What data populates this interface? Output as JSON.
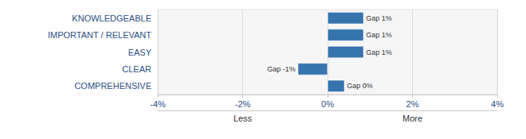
{
  "chart_data": {
    "type": "bar",
    "orientation": "horizontal",
    "categories": [
      "KNOWLEDGEABLE",
      "IMPORTANT / RELEVANT",
      "EASY",
      "CLEAR",
      "COMPREHENSIVE"
    ],
    "values": [
      0.85,
      0.85,
      0.85,
      -0.7,
      0.4
    ],
    "value_labels": [
      "Gap 1%",
      "Gap 1%",
      "Gap 1%",
      "Gap -1%",
      "Gap 0%"
    ],
    "data_labels": true,
    "color": "#3674ad",
    "xlim": [
      -4,
      4
    ],
    "xticks": [
      {
        "value": -4,
        "label": "-4%"
      },
      {
        "value": -2,
        "label": "-2%"
      },
      {
        "value": 0,
        "label": "0%"
      },
      {
        "value": 2,
        "label": "2%"
      },
      {
        "value": 4,
        "label": "4%"
      }
    ],
    "annotations": [
      {
        "text": "Less",
        "x": -2
      },
      {
        "text": "More",
        "x": 2
      }
    ],
    "grid": true
  }
}
